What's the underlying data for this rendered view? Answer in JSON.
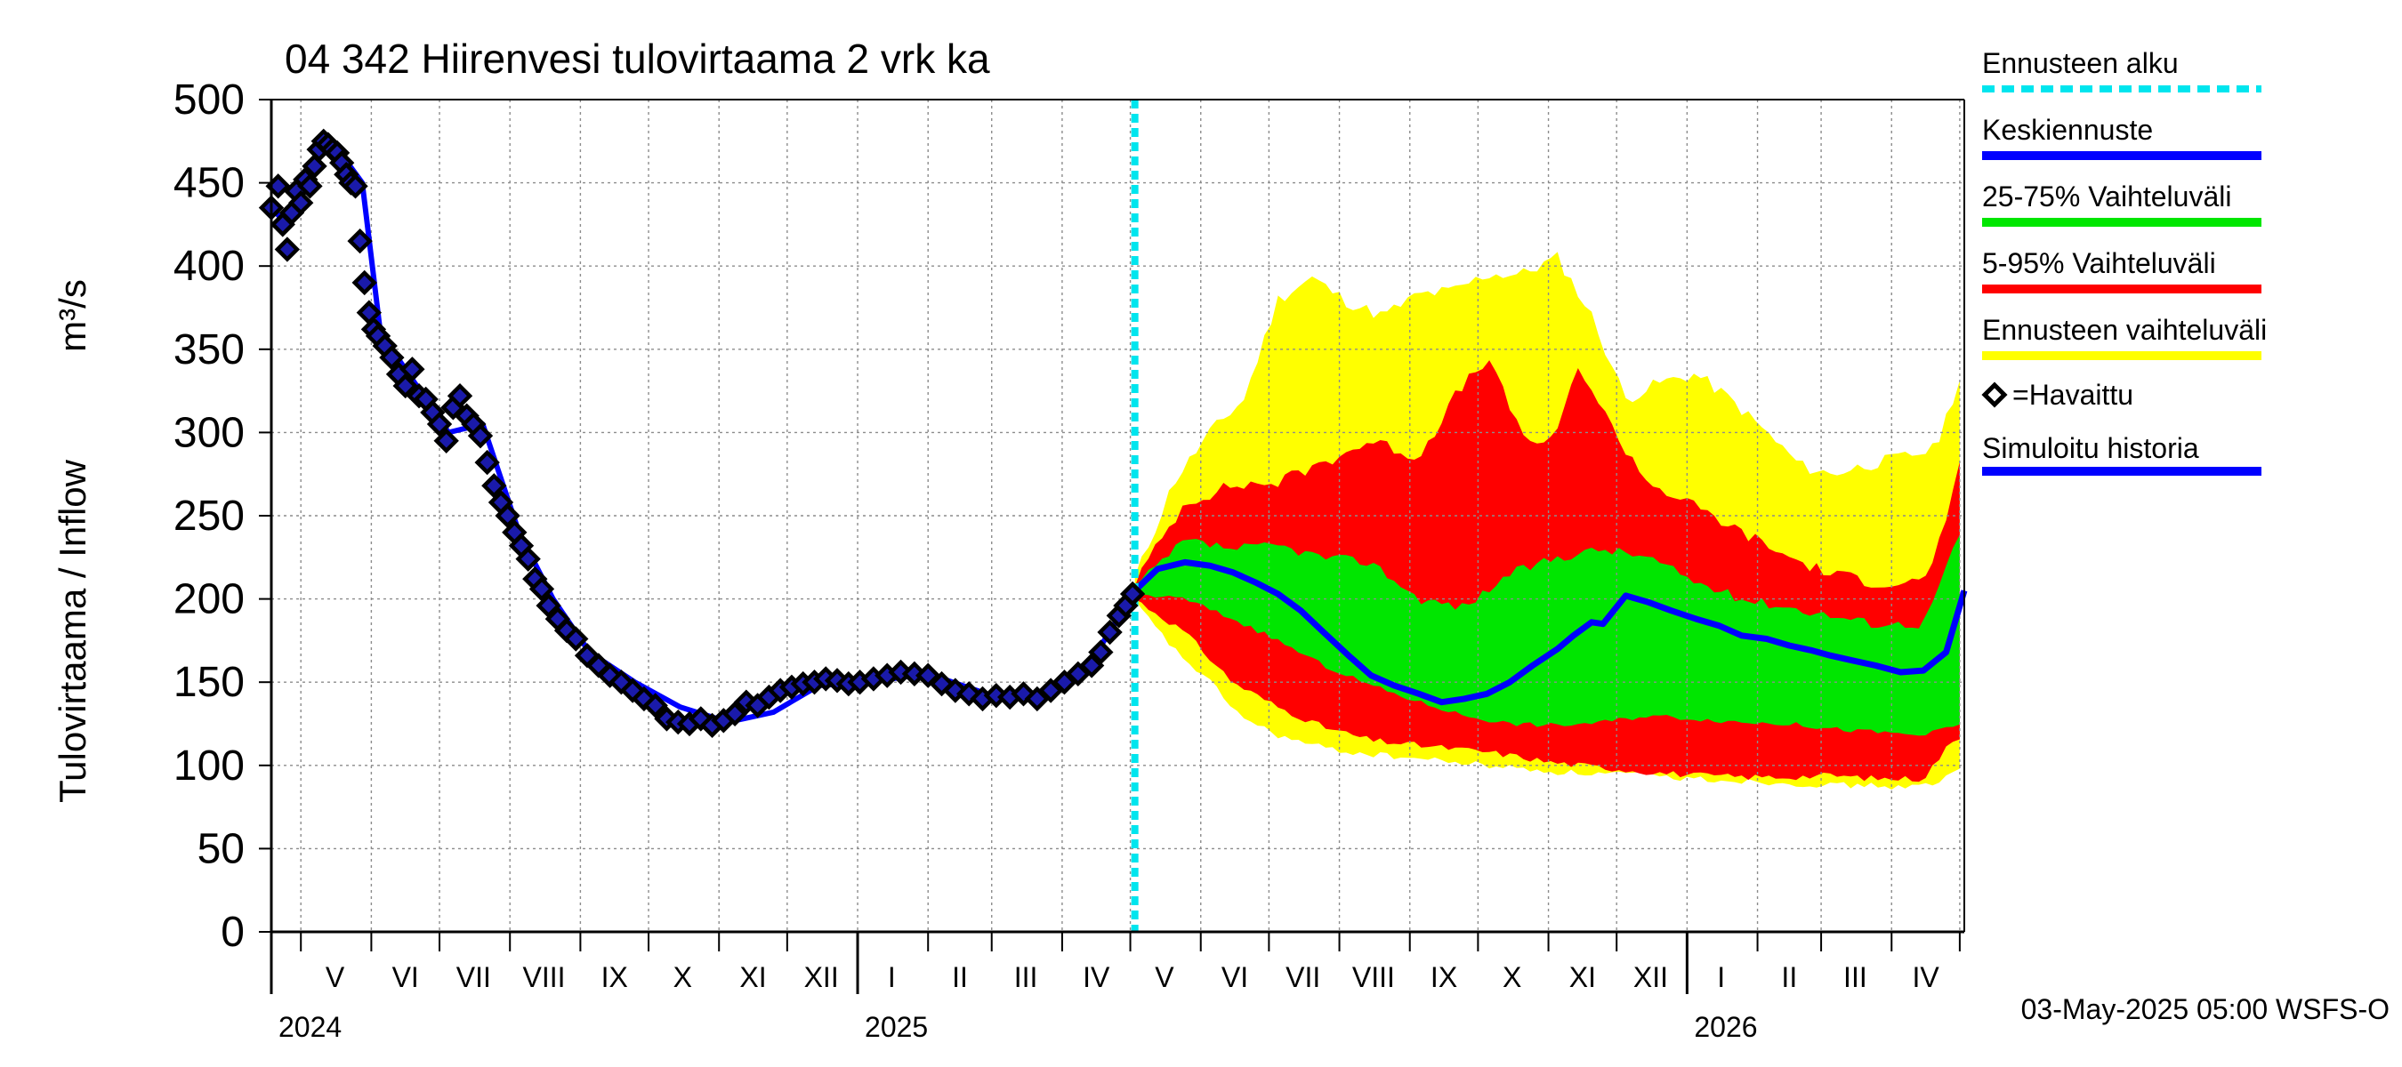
{
  "chart_data": {
    "type": "area",
    "title": "04 342 Hiirenvesi tulovirtaama 2 vrk ka",
    "ylabel": "Tulovirtaama / Inflow",
    "yunit": "m³/s",
    "ylim": [
      0,
      500
    ],
    "yticks": [
      0,
      50,
      100,
      150,
      200,
      250,
      300,
      350,
      400,
      450,
      500
    ],
    "xlim": [
      "2024-04-18",
      "2026-05-03"
    ],
    "grid": true,
    "legend_position": "right",
    "forecast_start": "2025-05-03",
    "month_labels": [
      {
        "label": "V",
        "date": "2024-05-16"
      },
      {
        "label": "VI",
        "date": "2024-06-16"
      },
      {
        "label": "VII",
        "date": "2024-07-16"
      },
      {
        "label": "VIII",
        "date": "2024-08-16"
      },
      {
        "label": "IX",
        "date": "2024-09-16"
      },
      {
        "label": "X",
        "date": "2024-10-16"
      },
      {
        "label": "XI",
        "date": "2024-11-16"
      },
      {
        "label": "XII",
        "date": "2024-12-16"
      },
      {
        "label": "I",
        "date": "2025-01-16"
      },
      {
        "label": "II",
        "date": "2025-02-15"
      },
      {
        "label": "III",
        "date": "2025-03-16"
      },
      {
        "label": "IV",
        "date": "2025-04-16"
      },
      {
        "label": "V",
        "date": "2025-05-16"
      },
      {
        "label": "VI",
        "date": "2025-06-16"
      },
      {
        "label": "VII",
        "date": "2025-07-16"
      },
      {
        "label": "VIII",
        "date": "2025-08-16"
      },
      {
        "label": "IX",
        "date": "2025-09-16"
      },
      {
        "label": "X",
        "date": "2025-10-16"
      },
      {
        "label": "XI",
        "date": "2025-11-16"
      },
      {
        "label": "XII",
        "date": "2025-12-16"
      },
      {
        "label": "I",
        "date": "2026-01-16"
      },
      {
        "label": "II",
        "date": "2026-02-15"
      },
      {
        "label": "III",
        "date": "2026-03-16"
      },
      {
        "label": "IV",
        "date": "2026-04-16"
      }
    ],
    "month_boundaries": [
      "2024-05-01",
      "2024-06-01",
      "2024-07-01",
      "2024-08-01",
      "2024-09-01",
      "2024-10-01",
      "2024-11-01",
      "2024-12-01",
      "2025-01-01",
      "2025-02-01",
      "2025-03-01",
      "2025-04-01",
      "2025-05-01",
      "2025-06-01",
      "2025-07-01",
      "2025-08-01",
      "2025-09-01",
      "2025-10-01",
      "2025-11-01",
      "2025-12-01",
      "2026-01-01",
      "2026-02-01",
      "2026-03-01",
      "2026-04-01",
      "2026-05-01"
    ],
    "year_boundaries": [
      "2025-01-01",
      "2026-01-01"
    ],
    "year_labels": [
      {
        "label": "2024",
        "date": "2024-04-18"
      },
      {
        "label": "2025",
        "date": "2025-01-01"
      },
      {
        "label": "2026",
        "date": "2026-01-01"
      }
    ],
    "footer": "03-May-2025 05:00 WSFS-O",
    "legend": [
      {
        "label": "Ennusteen alku",
        "color": "#00e5ee",
        "style": "dashed"
      },
      {
        "label": "Keskiennuste",
        "color": "#0000ff",
        "style": "line"
      },
      {
        "label": "25-75% Vaihteluväli",
        "color": "#00e600",
        "style": "line"
      },
      {
        "label": "5-95% Vaihteluväli",
        "color": "#ff0000",
        "style": "line"
      },
      {
        "label": "Ennusteen vaihteluväli",
        "color": "#ffff00",
        "style": "line"
      },
      {
        "label": "=Havaittu",
        "color": "#000000",
        "style": "marker"
      },
      {
        "label": "Simuloitu historia",
        "color": "#0000ff",
        "style": "line"
      }
    ],
    "colors": {
      "yellow_band": "#ffff00",
      "red_band": "#ff0000",
      "green_band": "#00e600",
      "median": "#0000ff",
      "simulated": "#0000ff",
      "forecast_line": "#00e5ee",
      "observed_marker": "#000000",
      "observed_fill": "#1a1aaa",
      "grid": "#8c8c8c"
    },
    "series": [
      {
        "name": "Havaittu",
        "kind": "observed",
        "x": [
          "2024-04-18",
          "2024-04-21",
          "2024-04-23",
          "2024-04-25",
          "2024-04-27",
          "2024-04-29",
          "2024-05-01",
          "2024-05-03",
          "2024-05-05",
          "2024-05-07",
          "2024-05-09",
          "2024-05-11",
          "2024-05-13",
          "2024-05-15",
          "2024-05-17",
          "2024-05-19",
          "2024-05-21",
          "2024-05-23",
          "2024-05-25",
          "2024-05-27",
          "2024-05-29",
          "2024-05-31",
          "2024-06-02",
          "2024-06-04",
          "2024-06-07",
          "2024-06-10",
          "2024-06-13",
          "2024-06-16",
          "2024-06-19",
          "2024-06-22",
          "2024-06-25",
          "2024-06-28",
          "2024-07-01",
          "2024-07-04",
          "2024-07-07",
          "2024-07-10",
          "2024-07-13",
          "2024-07-16",
          "2024-07-19",
          "2024-07-22",
          "2024-07-25",
          "2024-07-28",
          "2024-07-31",
          "2024-08-03",
          "2024-08-06",
          "2024-08-09",
          "2024-08-12",
          "2024-08-15",
          "2024-08-18",
          "2024-08-22",
          "2024-08-26",
          "2024-08-30",
          "2024-09-04",
          "2024-09-09",
          "2024-09-14",
          "2024-09-19",
          "2024-09-24",
          "2024-09-29",
          "2024-10-04",
          "2024-10-09",
          "2024-10-14",
          "2024-10-19",
          "2024-10-24",
          "2024-10-29",
          "2024-11-03",
          "2024-11-08",
          "2024-11-13",
          "2024-11-18",
          "2024-11-23",
          "2024-11-28",
          "2024-12-03",
          "2024-12-08",
          "2024-12-13",
          "2024-12-18",
          "2024-12-23",
          "2024-12-28",
          "2025-01-02",
          "2025-01-08",
          "2025-01-14",
          "2025-01-20",
          "2025-01-26",
          "2025-02-01",
          "2025-02-07",
          "2025-02-13",
          "2025-02-19",
          "2025-02-25",
          "2025-03-03",
          "2025-03-09",
          "2025-03-15",
          "2025-03-21",
          "2025-03-27",
          "2025-04-02",
          "2025-04-08",
          "2025-04-14",
          "2025-04-18",
          "2025-04-22",
          "2025-04-26",
          "2025-04-29",
          "2025-05-02"
        ],
        "values": [
          435,
          448,
          425,
          410,
          432,
          445,
          438,
          452,
          448,
          460,
          470,
          475,
          473,
          470,
          468,
          462,
          455,
          450,
          448,
          415,
          390,
          372,
          362,
          358,
          352,
          345,
          335,
          328,
          338,
          322,
          320,
          312,
          305,
          295,
          315,
          322,
          310,
          305,
          298,
          282,
          268,
          258,
          250,
          240,
          232,
          224,
          212,
          206,
          196,
          188,
          181,
          176,
          166,
          160,
          154,
          150,
          145,
          140,
          136,
          128,
          126,
          125,
          128,
          124,
          127,
          131,
          138,
          136,
          141,
          145,
          147,
          149,
          150,
          152,
          151,
          149,
          150,
          152,
          154,
          156,
          155,
          154,
          149,
          145,
          143,
          140,
          142,
          141,
          143,
          140,
          145,
          150,
          155,
          160,
          168,
          180,
          190,
          196,
          203
        ]
      },
      {
        "name": "Keskiennuste",
        "kind": "median",
        "x": [
          "2025-05-03",
          "2025-05-13",
          "2025-05-25",
          "2025-06-05",
          "2025-06-15",
          "2025-06-25",
          "2025-07-05",
          "2025-07-15",
          "2025-07-25",
          "2025-08-05",
          "2025-08-15",
          "2025-08-25",
          "2025-09-05",
          "2025-09-15",
          "2025-09-25",
          "2025-10-05",
          "2025-10-15",
          "2025-10-25",
          "2025-11-05",
          "2025-11-12",
          "2025-11-20",
          "2025-11-25",
          "2025-12-05",
          "2025-12-15",
          "2025-12-25",
          "2026-01-05",
          "2026-01-15",
          "2026-01-25",
          "2026-02-05",
          "2026-02-15",
          "2026-02-25",
          "2026-03-05",
          "2026-03-15",
          "2026-03-25",
          "2026-04-05",
          "2026-04-15",
          "2026-04-25",
          "2026-05-03"
        ],
        "values": [
          205,
          218,
          222,
          220,
          216,
          210,
          203,
          193,
          180,
          166,
          154,
          148,
          143,
          138,
          140,
          143,
          150,
          160,
          170,
          178,
          186,
          185,
          202,
          198,
          193,
          188,
          184,
          178,
          176,
          172,
          169,
          166,
          163,
          160,
          156,
          157,
          168,
          205
        ]
      },
      {
        "name": "25-75% Vaihteluväli",
        "kind": "band",
        "x": [
          "2025-05-03",
          "2025-05-25",
          "2025-06-15",
          "2025-07-05",
          "2025-07-25",
          "2025-08-15",
          "2025-09-05",
          "2025-09-25",
          "2025-10-15",
          "2025-11-05",
          "2025-11-25",
          "2025-12-15",
          "2026-01-05",
          "2026-01-25",
          "2026-02-15",
          "2026-03-05",
          "2026-03-25",
          "2026-04-15",
          "2026-05-03"
        ],
        "low": [
          203,
          200,
          188,
          175,
          160,
          148,
          138,
          130,
          125,
          124,
          126,
          130,
          128,
          126,
          125,
          122,
          120,
          118,
          125
        ],
        "high": [
          207,
          235,
          230,
          232,
          225,
          222,
          200,
          195,
          215,
          225,
          230,
          225,
          210,
          200,
          195,
          190,
          185,
          185,
          245
        ]
      },
      {
        "name": "5-95% Vaihteluväli",
        "kind": "band",
        "x": [
          "2025-05-03",
          "2025-05-25",
          "2025-06-15",
          "2025-07-05",
          "2025-07-25",
          "2025-08-15",
          "2025-09-05",
          "2025-09-20",
          "2025-10-05",
          "2025-10-20",
          "2025-11-01",
          "2025-11-15",
          "2025-11-30",
          "2025-12-15",
          "2026-01-05",
          "2026-01-25",
          "2026-02-15",
          "2026-03-05",
          "2026-03-25",
          "2026-04-15",
          "2026-04-25",
          "2026-05-03"
        ],
        "low": [
          200,
          180,
          150,
          135,
          123,
          115,
          112,
          110,
          108,
          105,
          102,
          100,
          98,
          96,
          94,
          93,
          93,
          94,
          92,
          92,
          110,
          120
        ],
        "high": [
          210,
          258,
          268,
          270,
          282,
          295,
          285,
          320,
          345,
          300,
          290,
          340,
          300,
          270,
          255,
          240,
          225,
          215,
          210,
          210,
          245,
          290
        ]
      },
      {
        "name": "Ennusteen vaihteluväli",
        "kind": "band",
        "x": [
          "2025-05-03",
          "2025-05-20",
          "2025-06-05",
          "2025-06-20",
          "2025-07-05",
          "2025-07-20",
          "2025-08-05",
          "2025-08-20",
          "2025-09-05",
          "2025-09-20",
          "2025-10-05",
          "2025-10-20",
          "2025-11-05",
          "2025-11-20",
          "2025-12-05",
          "2025-12-20",
          "2026-01-05",
          "2026-01-20",
          "2026-02-05",
          "2026-02-20",
          "2026-03-05",
          "2026-03-20",
          "2026-04-05",
          "2026-04-20",
          "2026-05-03"
        ],
        "low": [
          198,
          170,
          150,
          128,
          118,
          112,
          108,
          106,
          104,
          102,
          100,
          98,
          96,
          95,
          95,
          93,
          92,
          91,
          90,
          89,
          88,
          88,
          87,
          88,
          100
        ],
        "high": [
          212,
          270,
          300,
          320,
          380,
          393,
          378,
          370,
          383,
          385,
          395,
          395,
          405,
          370,
          320,
          330,
          335,
          320,
          300,
          280,
          275,
          280,
          285,
          290,
          340
        ]
      },
      {
        "name": "Simuloitu historia",
        "kind": "simulated",
        "x": [
          "2024-04-18",
          "2024-04-25",
          "2024-05-02",
          "2024-05-09",
          "2024-05-14",
          "2024-05-20",
          "2024-05-28",
          "2024-06-05",
          "2024-06-20",
          "2024-07-05",
          "2024-07-20",
          "2024-08-05",
          "2024-08-20",
          "2024-09-05",
          "2024-09-25",
          "2024-10-15",
          "2024-11-05",
          "2024-11-25",
          "2024-12-15",
          "2025-01-05",
          "2025-02-01",
          "2025-03-01",
          "2025-03-25",
          "2025-04-15",
          "2025-05-03"
        ],
        "values": [
          435,
          425,
          445,
          465,
          475,
          465,
          450,
          360,
          330,
          300,
          305,
          240,
          200,
          168,
          150,
          135,
          126,
          132,
          148,
          150,
          155,
          142,
          143,
          165,
          205
        ]
      }
    ]
  }
}
